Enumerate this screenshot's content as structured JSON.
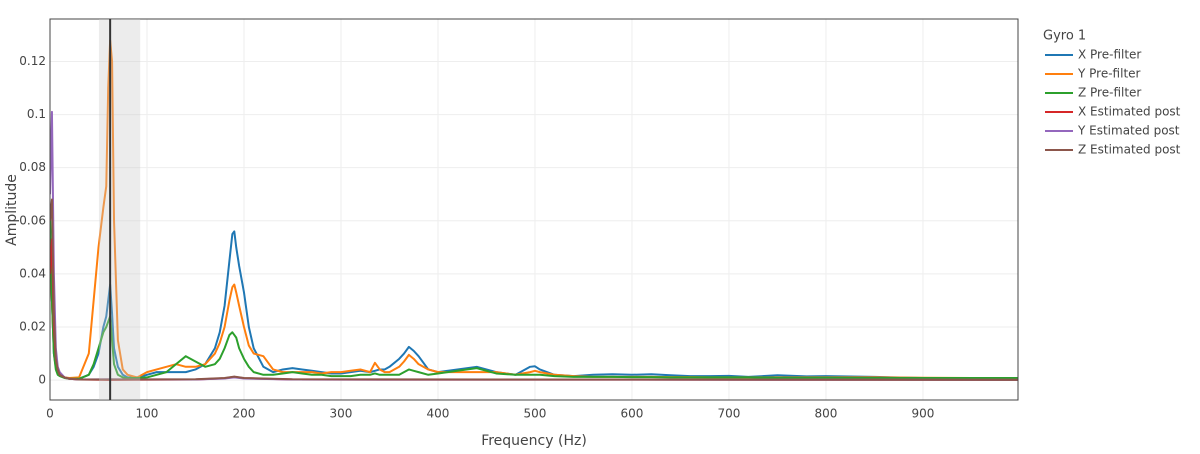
{
  "chart_data": {
    "type": "line",
    "xlabel": "Frequency (Hz)",
    "ylabel": "Amplitude",
    "legend_title": "Gyro 1",
    "xlim": [
      0,
      998
    ],
    "ylim": [
      -0.0075,
      0.136
    ],
    "xticks": [
      0,
      100,
      200,
      300,
      400,
      500,
      600,
      700,
      800,
      900
    ],
    "yticks": [
      0,
      0.02,
      0.04,
      0.06,
      0.08,
      0.1,
      0.12
    ],
    "grid": true,
    "legend": "right",
    "notch_band": [
      50.5,
      93
    ],
    "notch_center": 62,
    "series": [
      {
        "name": "X Pre-filter",
        "color": "#1f77b4",
        "x": [
          0,
          2,
          4,
          6,
          8,
          10,
          15,
          20,
          30,
          40,
          45,
          50,
          55,
          58,
          60,
          62,
          64,
          66,
          70,
          75,
          80,
          90,
          100,
          110,
          120,
          130,
          140,
          150,
          160,
          170,
          175,
          180,
          185,
          188,
          190,
          192,
          195,
          200,
          205,
          210,
          220,
          230,
          240,
          250,
          260,
          270,
          280,
          290,
          300,
          310,
          320,
          330,
          335,
          340,
          345,
          350,
          360,
          365,
          370,
          375,
          380,
          390,
          400,
          420,
          440,
          460,
          480,
          495,
          500,
          505,
          520,
          540,
          560,
          580,
          600,
          620,
          640,
          660,
          680,
          700,
          720,
          750,
          780,
          800,
          850,
          900,
          950,
          998
        ],
        "values": [
          0.05,
          0.03,
          0.01,
          0.005,
          0.003,
          0.002,
          0.001,
          0.0005,
          0.0005,
          0.002,
          0.005,
          0.01,
          0.02,
          0.024,
          0.03,
          0.036,
          0.025,
          0.012,
          0.005,
          0.002,
          0.001,
          0.001,
          0.002,
          0.003,
          0.003,
          0.003,
          0.003,
          0.004,
          0.006,
          0.012,
          0.018,
          0.028,
          0.045,
          0.055,
          0.056,
          0.05,
          0.043,
          0.033,
          0.02,
          0.012,
          0.005,
          0.003,
          0.004,
          0.0045,
          0.004,
          0.0035,
          0.003,
          0.0025,
          0.0025,
          0.003,
          0.0035,
          0.003,
          0.0035,
          0.004,
          0.004,
          0.005,
          0.008,
          0.01,
          0.0125,
          0.011,
          0.009,
          0.004,
          0.003,
          0.004,
          0.005,
          0.003,
          0.002,
          0.005,
          0.0052,
          0.004,
          0.002,
          0.0015,
          0.002,
          0.0022,
          0.002,
          0.0022,
          0.0018,
          0.0015,
          0.0015,
          0.0016,
          0.0012,
          0.0018,
          0.0014,
          0.0015,
          0.0012,
          0.0008,
          0.0006,
          0.0005
        ]
      },
      {
        "name": "Y Pre-filter",
        "color": "#ff7f0e",
        "x": [
          0,
          2,
          4,
          6,
          8,
          10,
          15,
          20,
          30,
          40,
          45,
          50,
          55,
          58,
          60,
          62,
          64,
          66,
          70,
          75,
          80,
          90,
          100,
          110,
          120,
          130,
          140,
          150,
          160,
          170,
          175,
          180,
          185,
          188,
          190,
          192,
          195,
          200,
          205,
          210,
          220,
          230,
          240,
          250,
          260,
          270,
          280,
          290,
          300,
          310,
          320,
          330,
          335,
          340,
          345,
          350,
          360,
          365,
          370,
          375,
          380,
          390,
          400,
          420,
          440,
          460,
          480,
          495,
          500,
          505,
          520,
          540,
          560,
          580,
          600,
          620,
          640,
          660,
          680,
          700,
          720,
          750,
          780,
          800,
          850,
          900,
          950,
          998
        ],
        "values": [
          0.06,
          0.03,
          0.012,
          0.005,
          0.003,
          0.002,
          0.001,
          0.0008,
          0.001,
          0.01,
          0.03,
          0.05,
          0.065,
          0.073,
          0.11,
          0.128,
          0.12,
          0.06,
          0.015,
          0.004,
          0.002,
          0.001,
          0.003,
          0.004,
          0.005,
          0.006,
          0.005,
          0.005,
          0.006,
          0.01,
          0.014,
          0.02,
          0.03,
          0.035,
          0.036,
          0.033,
          0.028,
          0.02,
          0.013,
          0.01,
          0.009,
          0.004,
          0.003,
          0.003,
          0.003,
          0.003,
          0.0025,
          0.003,
          0.003,
          0.0035,
          0.004,
          0.003,
          0.0065,
          0.004,
          0.003,
          0.003,
          0.005,
          0.007,
          0.0095,
          0.008,
          0.006,
          0.004,
          0.003,
          0.003,
          0.003,
          0.003,
          0.002,
          0.003,
          0.0035,
          0.003,
          0.002,
          0.0015,
          0.0012,
          0.0012,
          0.0012,
          0.0012,
          0.0011,
          0.0011,
          0.001,
          0.001,
          0.001,
          0.001,
          0.001,
          0.001,
          0.001,
          0.0009,
          0.0008,
          0.0008
        ]
      },
      {
        "name": "Z Pre-filter",
        "color": "#2ca02c",
        "x": [
          0,
          2,
          4,
          6,
          8,
          10,
          15,
          20,
          30,
          40,
          45,
          50,
          55,
          58,
          60,
          62,
          64,
          66,
          70,
          75,
          80,
          90,
          100,
          110,
          120,
          130,
          140,
          150,
          160,
          170,
          175,
          180,
          185,
          188,
          190,
          192,
          195,
          200,
          205,
          210,
          220,
          230,
          240,
          250,
          260,
          270,
          280,
          290,
          300,
          310,
          320,
          330,
          335,
          340,
          345,
          350,
          360,
          365,
          370,
          375,
          380,
          390,
          400,
          420,
          440,
          460,
          480,
          495,
          500,
          505,
          520,
          540,
          560,
          580,
          600,
          620,
          640,
          660,
          680,
          700,
          720,
          750,
          780,
          800,
          850,
          900,
          950,
          998
        ],
        "values": [
          0.065,
          0.03,
          0.01,
          0.004,
          0.002,
          0.0015,
          0.0008,
          0.0005,
          0.0005,
          0.002,
          0.006,
          0.012,
          0.018,
          0.02,
          0.022,
          0.024,
          0.015,
          0.006,
          0.002,
          0.001,
          0.0008,
          0.0008,
          0.001,
          0.002,
          0.003,
          0.006,
          0.009,
          0.007,
          0.005,
          0.006,
          0.008,
          0.012,
          0.017,
          0.018,
          0.017,
          0.016,
          0.012,
          0.008,
          0.005,
          0.003,
          0.002,
          0.002,
          0.0025,
          0.003,
          0.0025,
          0.002,
          0.002,
          0.0015,
          0.0015,
          0.0015,
          0.002,
          0.002,
          0.0025,
          0.002,
          0.002,
          0.002,
          0.002,
          0.003,
          0.004,
          0.0035,
          0.003,
          0.002,
          0.0025,
          0.0035,
          0.0045,
          0.0025,
          0.002,
          0.002,
          0.002,
          0.002,
          0.0015,
          0.0012,
          0.0012,
          0.0012,
          0.0011,
          0.0011,
          0.001,
          0.001,
          0.001,
          0.001,
          0.001,
          0.0009,
          0.0009,
          0.0009,
          0.0008,
          0.0008,
          0.0008,
          0.0008
        ]
      },
      {
        "name": "X Estimated post",
        "color": "#d62728",
        "x": [
          0,
          2,
          4,
          6,
          8,
          10,
          15,
          20,
          30,
          60,
          150,
          180,
          190,
          200,
          250,
          998
        ],
        "values": [
          0.04,
          0.053,
          0.02,
          0.008,
          0.004,
          0.002,
          0.001,
          0.0005,
          0.0002,
          0.0001,
          0.0002,
          0.0007,
          0.0012,
          0.0007,
          0.0002,
          0.0001
        ]
      },
      {
        "name": "Y Estimated post",
        "color": "#9467bd",
        "x": [
          0,
          2,
          4,
          6,
          8,
          10,
          15,
          20,
          30,
          60,
          150,
          180,
          190,
          200,
          250,
          998
        ],
        "values": [
          0.07,
          0.101,
          0.04,
          0.012,
          0.005,
          0.003,
          0.001,
          0.0005,
          0.0002,
          0.0003,
          0.0002,
          0.0006,
          0.001,
          0.0006,
          0.0002,
          0.0001
        ]
      },
      {
        "name": "Z Estimated post",
        "color": "#8c564b",
        "x": [
          0,
          2,
          4,
          6,
          8,
          10,
          15,
          20,
          30,
          60,
          150,
          180,
          190,
          200,
          250,
          998
        ],
        "values": [
          0.06,
          0.068,
          0.025,
          0.008,
          0.004,
          0.002,
          0.001,
          0.0005,
          0.0002,
          0.0002,
          0.0003,
          0.0008,
          0.0013,
          0.0008,
          0.0003,
          0.0001
        ]
      }
    ]
  }
}
